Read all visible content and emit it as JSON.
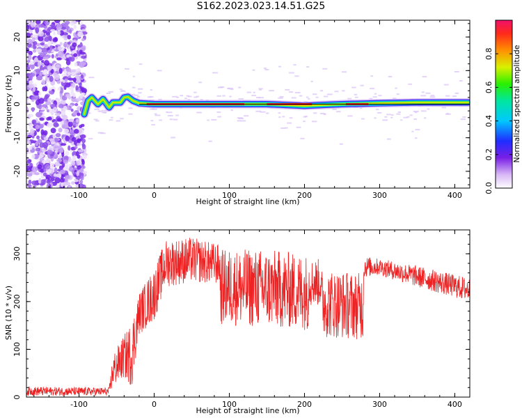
{
  "title": "S162.2023.023.14.51.G25",
  "colors": {
    "snr_line": "#ee2222",
    "zero_line": "#000000",
    "axis": "#000000"
  },
  "chart_data": [
    {
      "type": "heatmap",
      "xlabel": "Height of straight line (km)",
      "ylabel": "Frequency (Hz)",
      "xlim": [
        -170,
        420
      ],
      "ylim": [
        -25,
        25
      ],
      "x_ticks": [
        -100,
        0,
        100,
        200,
        300,
        400
      ],
      "y_ticks": [
        -20,
        -10,
        0,
        10,
        20
      ],
      "colorbar": {
        "label": "Normalized spectral amplitude",
        "range": [
          0.0,
          1.0
        ],
        "ticks": [
          "0.0",
          "0.2",
          "0.4",
          "0.6",
          "0.8"
        ],
        "colormap": "rainbow"
      },
      "noise_region_x": [
        -170,
        -92
      ],
      "signal_ridge": [
        [
          -93,
          -3
        ],
        [
          -88,
          1
        ],
        [
          -83,
          2
        ],
        [
          -75,
          0
        ],
        [
          -68,
          1.5
        ],
        [
          -60,
          -1
        ],
        [
          -55,
          0.5
        ],
        [
          -45,
          0.5
        ],
        [
          -40,
          2
        ],
        [
          -35,
          2.2
        ],
        [
          -28,
          1
        ],
        [
          -20,
          0.3
        ],
        [
          0,
          0
        ],
        [
          50,
          0
        ],
        [
          100,
          0
        ],
        [
          150,
          0
        ],
        [
          200,
          -0.5
        ],
        [
          220,
          -0.3
        ],
        [
          250,
          0
        ],
        [
          300,
          0.3
        ],
        [
          350,
          0.5
        ],
        [
          418,
          0.5
        ]
      ]
    },
    {
      "type": "line",
      "xlabel": "Height of straight line (km)",
      "ylabel": "SNR (10 * v/v)",
      "xlim": [
        -170,
        420
      ],
      "ylim": [
        0,
        350
      ],
      "x_ticks": [
        -100,
        0,
        100,
        200,
        300,
        400
      ],
      "y_ticks": [
        0,
        100,
        200,
        300
      ],
      "envelope": [
        {
          "x": -170,
          "lo": 3,
          "hi": 22
        },
        {
          "x": -60,
          "lo": 3,
          "hi": 20
        },
        {
          "x": -55,
          "lo": 20,
          "hi": 90
        },
        {
          "x": -40,
          "lo": 40,
          "hi": 130
        },
        {
          "x": -30,
          "lo": 20,
          "hi": 160
        },
        {
          "x": -20,
          "lo": 130,
          "hi": 220
        },
        {
          "x": 0,
          "lo": 160,
          "hi": 270
        },
        {
          "x": 15,
          "lo": 230,
          "hi": 330
        },
        {
          "x": 50,
          "lo": 240,
          "hi": 335
        },
        {
          "x": 87,
          "lo": 235,
          "hi": 320
        },
        {
          "x": 88,
          "lo": 150,
          "hi": 310
        },
        {
          "x": 150,
          "lo": 145,
          "hi": 310
        },
        {
          "x": 205,
          "lo": 140,
          "hi": 300
        },
        {
          "x": 206,
          "lo": 190,
          "hi": 290
        },
        {
          "x": 222,
          "lo": 190,
          "hi": 290
        },
        {
          "x": 223,
          "lo": 125,
          "hi": 270
        },
        {
          "x": 278,
          "lo": 120,
          "hi": 260
        },
        {
          "x": 279,
          "lo": 250,
          "hi": 295
        },
        {
          "x": 300,
          "lo": 255,
          "hi": 290
        },
        {
          "x": 350,
          "lo": 230,
          "hi": 275
        },
        {
          "x": 418,
          "lo": 200,
          "hi": 250
        }
      ]
    }
  ]
}
